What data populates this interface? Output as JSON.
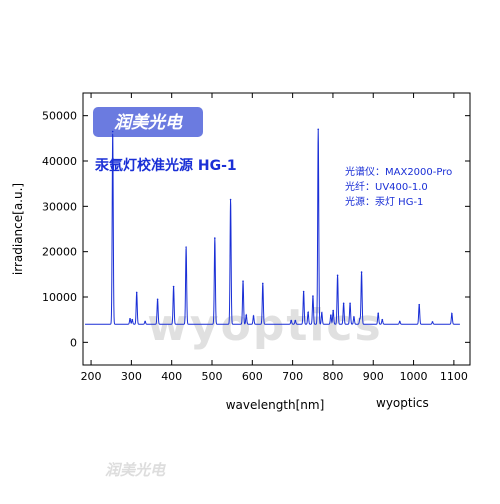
{
  "brand": {
    "logo_text": "润美光电",
    "accent": "#6b7be0"
  },
  "watermark": "wyoptics",
  "credit": "wyoptics",
  "footer_watermark": "润美光电",
  "chart_data": {
    "type": "line",
    "title": "汞氩灯校准光源 HG-1",
    "info_lines": [
      "光谱仪：MAX2000-Pro",
      "光纤：UV400-1.0",
      "光源：汞灯 HG-1"
    ],
    "xlabel": "wavelength[nm]",
    "ylabel": "irradiance[a.u.]",
    "xlim": [
      180,
      1140
    ],
    "ylim": [
      -5000,
      55000
    ],
    "x_ticks": [
      200,
      300,
      400,
      500,
      600,
      700,
      800,
      900,
      1000,
      1100
    ],
    "y_ticks": [
      0,
      10000,
      20000,
      30000,
      40000,
      50000
    ],
    "line_color": "#1a2fd6",
    "baseline": 4000,
    "x_range": [
      185,
      1115
    ],
    "peaks": [
      {
        "x": 253.7,
        "y": 46500
      },
      {
        "x": 296.7,
        "y": 5200
      },
      {
        "x": 302.2,
        "y": 5000
      },
      {
        "x": 313.2,
        "y": 11000
      },
      {
        "x": 334.1,
        "y": 4600
      },
      {
        "x": 365.0,
        "y": 9500
      },
      {
        "x": 404.7,
        "y": 12300
      },
      {
        "x": 435.8,
        "y": 21000
      },
      {
        "x": 507.0,
        "y": 23000
      },
      {
        "x": 546.1,
        "y": 31500
      },
      {
        "x": 577.0,
        "y": 13500
      },
      {
        "x": 585.0,
        "y": 6000
      },
      {
        "x": 603.0,
        "y": 5800
      },
      {
        "x": 626.0,
        "y": 13000
      },
      {
        "x": 696.5,
        "y": 4800
      },
      {
        "x": 706.7,
        "y": 4800
      },
      {
        "x": 727.3,
        "y": 11200
      },
      {
        "x": 738.4,
        "y": 6600
      },
      {
        "x": 750.4,
        "y": 10200
      },
      {
        "x": 763.5,
        "y": 47000
      },
      {
        "x": 772.4,
        "y": 6500
      },
      {
        "x": 794.8,
        "y": 6000
      },
      {
        "x": 800.6,
        "y": 7000
      },
      {
        "x": 811.5,
        "y": 14800
      },
      {
        "x": 826.5,
        "y": 8600
      },
      {
        "x": 842.5,
        "y": 8600
      },
      {
        "x": 852.1,
        "y": 5600
      },
      {
        "x": 866.8,
        "y": 5200
      },
      {
        "x": 871.0,
        "y": 15500
      },
      {
        "x": 912.3,
        "y": 6400
      },
      {
        "x": 922.4,
        "y": 5000
      },
      {
        "x": 965.8,
        "y": 4600
      },
      {
        "x": 1014.0,
        "y": 8300
      },
      {
        "x": 1047.0,
        "y": 4500
      },
      {
        "x": 1095.0,
        "y": 6300
      }
    ]
  }
}
